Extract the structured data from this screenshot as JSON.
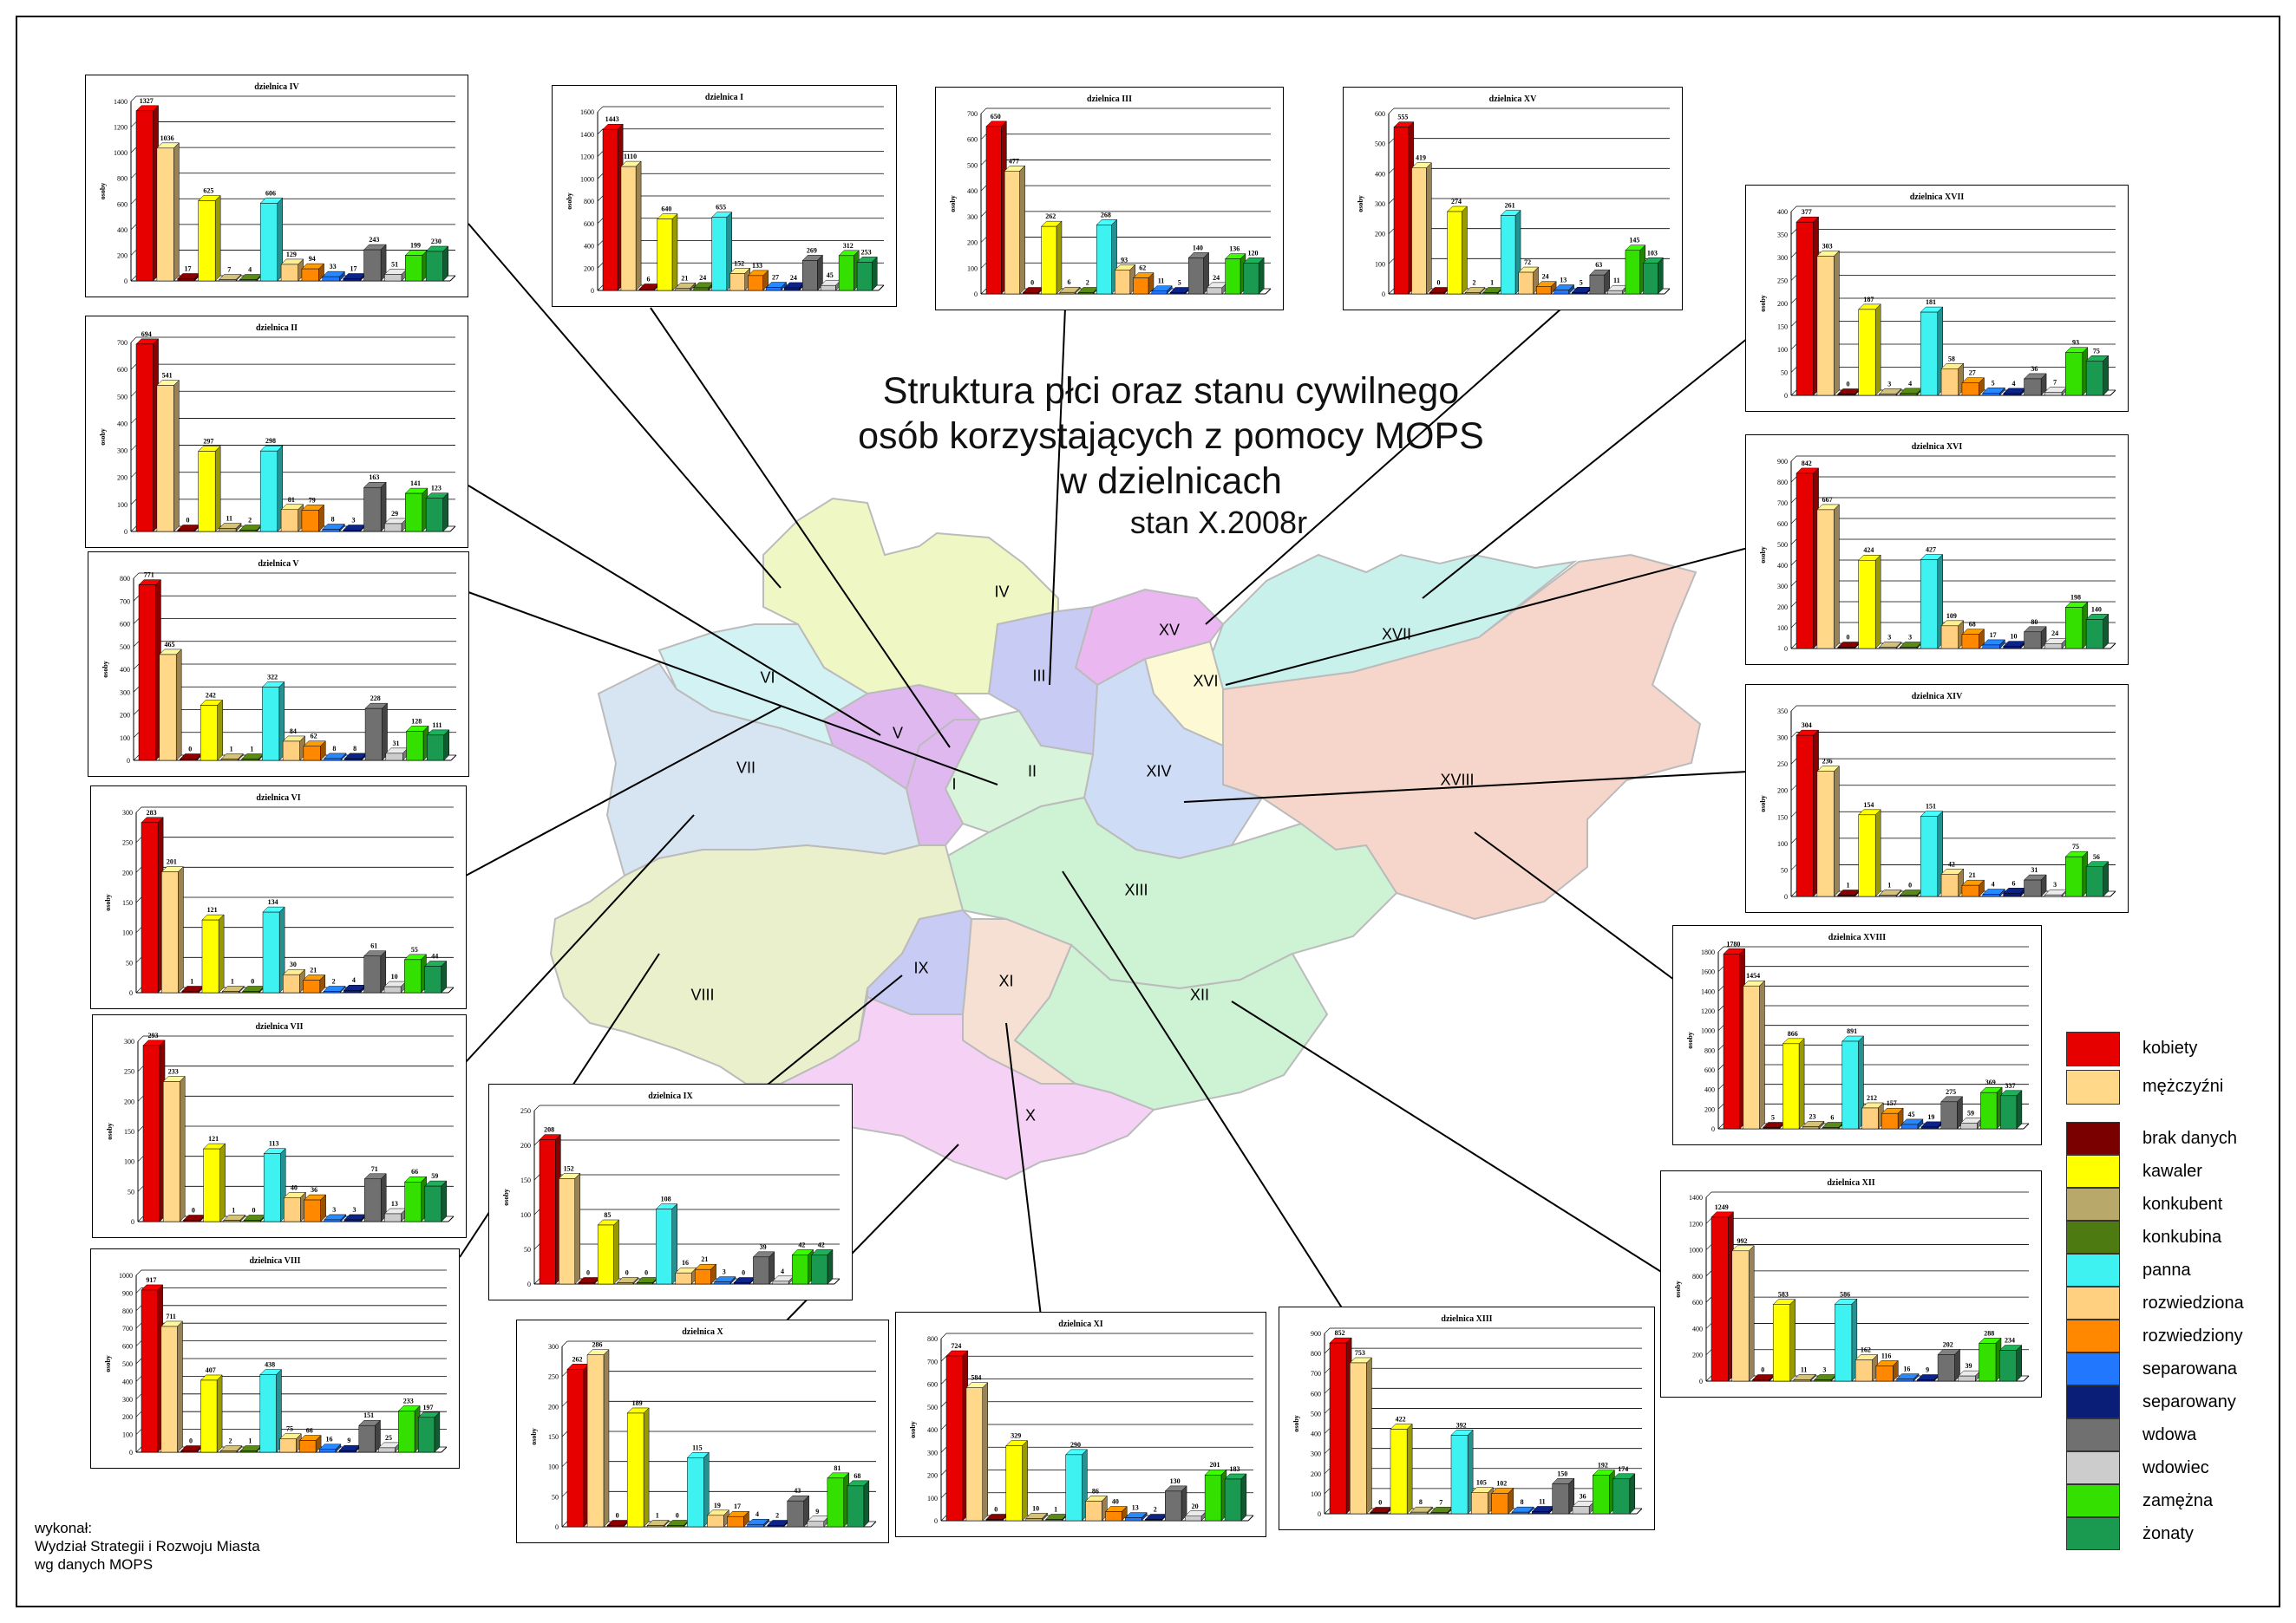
{
  "title": {
    "line1": "Struktura płci oraz stanu cywilnego",
    "line2": "osób korzystających z pomocy MOPS",
    "line3": "w dzielnicach",
    "line4": "stan X.2008r"
  },
  "credits": {
    "line1": "wykonał:",
    "line2": "Wydział Strategii i Rozwoju Miasta",
    "line3": "wg danych MOPS"
  },
  "map_labels": [
    "I",
    "II",
    "III",
    "IV",
    "V",
    "VI",
    "VII",
    "VIII",
    "IX",
    "X",
    "XI",
    "XII",
    "XIII",
    "XIV",
    "XV",
    "XVI",
    "XVII",
    "XVIII"
  ],
  "colors": {
    "kobiety": "#e60000",
    "mezczyzni": "#ffd88a",
    "brak_danych": "#7a0000",
    "kawaler": "#ffff00",
    "konkubent": "#b8a86a",
    "konkubina": "#4e7a12",
    "panna": "#3ef2f2",
    "rozwiedziona": "#ffd080",
    "rozwiedziony": "#ff8800",
    "separowana": "#2277ff",
    "separowany": "#0a1e78",
    "wdowa": "#707070",
    "wdowiec": "#cccccc",
    "zamezna": "#33e000",
    "zonaty": "#1a9a50"
  },
  "legend": [
    {
      "label": "kobiety",
      "key": "kobiety"
    },
    {
      "label": "mężczyźni",
      "key": "mezczyzni"
    },
    {
      "label": "brak danych",
      "key": "brak_danych"
    },
    {
      "label": "kawaler",
      "key": "kawaler"
    },
    {
      "label": "konkubent",
      "key": "konkubent"
    },
    {
      "label": "konkubina",
      "key": "konkubina"
    },
    {
      "label": "panna",
      "key": "panna"
    },
    {
      "label": "rozwiedziona",
      "key": "rozwiedziona"
    },
    {
      "label": "rozwiedziony",
      "key": "rozwiedziony"
    },
    {
      "label": "separowana",
      "key": "separowana"
    },
    {
      "label": "separowany",
      "key": "separowany"
    },
    {
      "label": "wdowa",
      "key": "wdowa"
    },
    {
      "label": "wdowiec",
      "key": "wdowiec"
    },
    {
      "label": "zamężna",
      "key": "zamezna"
    },
    {
      "label": "żonaty",
      "key": "zonaty"
    }
  ],
  "chart_data": [
    {
      "type": "bar",
      "title": "dzielnica IV",
      "ylabel": "osoby",
      "ylim": [
        0,
        1400
      ],
      "yticks": [
        0,
        200,
        400,
        600,
        800,
        1000,
        1200,
        1400
      ],
      "categories": [
        "kobiety",
        "mężczyźni",
        "brak danych",
        "kawaler",
        "konkubent",
        "konkubina",
        "panna",
        "rozwiedziona",
        "rozwiedziony",
        "separowana",
        "separowany",
        "wdowa",
        "wdowiec",
        "zamężna",
        "żonaty"
      ],
      "values": [
        1327,
        1036,
        17,
        625,
        7,
        4,
        606,
        129,
        94,
        33,
        17,
        243,
        51,
        199,
        230
      ]
    },
    {
      "type": "bar",
      "title": "dzielnica I",
      "ylabel": "osoby",
      "ylim": [
        0,
        1600
      ],
      "yticks": [
        0,
        200,
        400,
        600,
        800,
        1000,
        1200,
        1400,
        1600
      ],
      "categories": [
        "kobiety",
        "mężczyźni",
        "brak danych",
        "kawaler",
        "konkubent",
        "konkubina",
        "panna",
        "rozwiedziona",
        "rozwiedziony",
        "separowana",
        "separowany",
        "wdowa",
        "wdowiec",
        "zamężna",
        "żonaty"
      ],
      "values": [
        1443,
        1110,
        6,
        640,
        21,
        24,
        655,
        152,
        133,
        27,
        24,
        269,
        45,
        312,
        253
      ]
    },
    {
      "type": "bar",
      "title": "dzielnica III",
      "ylabel": "osoby",
      "ylim": [
        0,
        700
      ],
      "yticks": [
        0,
        100,
        200,
        300,
        400,
        500,
        600,
        700
      ],
      "categories": [
        "kobiety",
        "mężczyźni",
        "brak danych",
        "kawaler",
        "konkubent",
        "konkubina",
        "panna",
        "rozwiedziona",
        "rozwiedziony",
        "separowana",
        "separowany",
        "wdowa",
        "wdowiec",
        "zamężna",
        "żonaty"
      ],
      "values": [
        650,
        477,
        0,
        262,
        6,
        2,
        268,
        93,
        62,
        11,
        5,
        140,
        24,
        136,
        120
      ]
    },
    {
      "type": "bar",
      "title": "dzielnica XV",
      "ylabel": "osoby",
      "ylim": [
        0,
        600
      ],
      "yticks": [
        0,
        100,
        200,
        300,
        400,
        500,
        600
      ],
      "categories": [
        "kobiety",
        "mężczyźni",
        "brak danych",
        "kawaler",
        "konkubent",
        "konkubina",
        "panna",
        "rozwiedziona",
        "rozwiedziony",
        "separowana",
        "separowany",
        "wdowa",
        "wdowiec",
        "zamężna",
        "żonaty"
      ],
      "values": [
        555,
        419,
        0,
        274,
        2,
        1,
        261,
        72,
        24,
        13,
        5,
        63,
        11,
        145,
        103
      ]
    },
    {
      "type": "bar",
      "title": "dzielnica XVII",
      "ylabel": "osoby",
      "ylim": [
        0,
        400
      ],
      "yticks": [
        0,
        50,
        100,
        150,
        200,
        250,
        300,
        350,
        400
      ],
      "categories": [
        "kobiety",
        "mężczyźni",
        "brak danych",
        "kawaler",
        "konkubent",
        "konkubina",
        "panna",
        "rozwiedziona",
        "rozwiedziony",
        "separowana",
        "separowany",
        "wdowa",
        "wdowiec",
        "zamężna",
        "żonaty"
      ],
      "values": [
        377,
        303,
        0,
        187,
        3,
        4,
        181,
        58,
        27,
        5,
        4,
        36,
        7,
        93,
        75
      ]
    },
    {
      "type": "bar",
      "title": "dzielnica II",
      "ylabel": "osoby",
      "ylim": [
        0,
        700
      ],
      "yticks": [
        0,
        100,
        200,
        300,
        400,
        500,
        600,
        700
      ],
      "categories": [
        "kobiety",
        "mężczyźni",
        "brak danych",
        "kawaler",
        "konkubent",
        "konkubina",
        "panna",
        "rozwiedziona",
        "rozwiedziony",
        "separowana",
        "separowany",
        "wdowa",
        "wdowiec",
        "zamężna",
        "żonaty"
      ],
      "values": [
        694,
        541,
        0,
        297,
        11,
        2,
        298,
        81,
        79,
        8,
        3,
        163,
        29,
        141,
        123
      ]
    },
    {
      "type": "bar",
      "title": "dzielnica XVI",
      "ylabel": "osoby",
      "ylim": [
        0,
        900
      ],
      "yticks": [
        0,
        100,
        200,
        300,
        400,
        500,
        600,
        700,
        800,
        900
      ],
      "categories": [
        "kobiety",
        "mężczyźni",
        "brak danych",
        "kawaler",
        "konkubent",
        "konkubina",
        "panna",
        "rozwiedziona",
        "rozwiedziony",
        "separowana",
        "separowany",
        "wdowa",
        "wdowiec",
        "zamężna",
        "żonaty"
      ],
      "values": [
        842,
        667,
        0,
        424,
        3,
        3,
        427,
        109,
        68,
        17,
        10,
        80,
        24,
        198,
        140
      ]
    },
    {
      "type": "bar",
      "title": "dzielnica V",
      "ylabel": "osoby",
      "ylim": [
        0,
        800
      ],
      "yticks": [
        0,
        100,
        200,
        300,
        400,
        500,
        600,
        700,
        800
      ],
      "categories": [
        "kobiety",
        "mężczyźni",
        "brak danych",
        "kawaler",
        "konkubent",
        "konkubina",
        "panna",
        "rozwiedziona",
        "rozwiedziony",
        "separowana",
        "separowany",
        "wdowa",
        "wdowiec",
        "zamężna",
        "żonaty"
      ],
      "values": [
        771,
        465,
        0,
        242,
        1,
        1,
        322,
        84,
        62,
        8,
        8,
        228,
        31,
        128,
        111
      ]
    },
    {
      "type": "bar",
      "title": "dzielnica XIV",
      "ylabel": "osoby",
      "ylim": [
        0,
        350
      ],
      "yticks": [
        0,
        50,
        100,
        150,
        200,
        250,
        300,
        350
      ],
      "categories": [
        "kobiety",
        "mężczyźni",
        "brak danych",
        "kawaler",
        "konkubent",
        "konkubina",
        "panna",
        "rozwiedziona",
        "rozwiedziony",
        "separowana",
        "separowany",
        "wdowa",
        "wdowiec",
        "zamężna",
        "żonaty"
      ],
      "values": [
        304,
        236,
        1,
        154,
        1,
        0,
        151,
        42,
        21,
        4,
        6,
        31,
        3,
        75,
        56
      ]
    },
    {
      "type": "bar",
      "title": "dzielnica VI",
      "ylabel": "osoby",
      "ylim": [
        0,
        300
      ],
      "yticks": [
        0,
        50,
        100,
        150,
        200,
        250,
        300
      ],
      "categories": [
        "kobiety",
        "mężczyźni",
        "brak danych",
        "kawaler",
        "konkubent",
        "konkubina",
        "panna",
        "rozwiedziona",
        "rozwiedziony",
        "separowana",
        "separowany",
        "wdowa",
        "wdowiec",
        "zamężna",
        "żonaty"
      ],
      "values": [
        283,
        201,
        1,
        121,
        1,
        0,
        134,
        30,
        21,
        2,
        4,
        61,
        10,
        55,
        44
      ]
    },
    {
      "type": "bar",
      "title": "dzielnica XVIII",
      "ylabel": "osoby",
      "ylim": [
        0,
        1800
      ],
      "yticks": [
        0,
        200,
        400,
        600,
        800,
        1000,
        1200,
        1400,
        1600,
        1800
      ],
      "categories": [
        "kobiety",
        "mężczyźni",
        "brak danych",
        "kawaler",
        "konkubent",
        "konkubina",
        "panna",
        "rozwiedziona",
        "rozwiedziony",
        "separowana",
        "separowany",
        "wdowa",
        "wdowiec",
        "zamężna",
        "żonaty"
      ],
      "values": [
        1780,
        1454,
        5,
        866,
        23,
        6,
        891,
        212,
        157,
        45,
        19,
        275,
        59,
        369,
        337
      ]
    },
    {
      "type": "bar",
      "title": "dzielnica VII",
      "ylabel": "osoby",
      "ylim": [
        0,
        300
      ],
      "yticks": [
        0,
        50,
        100,
        150,
        200,
        250,
        300
      ],
      "categories": [
        "kobiety",
        "mężczyźni",
        "brak danych",
        "kawaler",
        "konkubent",
        "konkubina",
        "panna",
        "rozwiedziona",
        "rozwiedziony",
        "separowana",
        "separowany",
        "wdowa",
        "wdowiec",
        "zamężna",
        "żonaty"
      ],
      "values": [
        293,
        233,
        0,
        121,
        1,
        0,
        113,
        40,
        36,
        3,
        3,
        71,
        13,
        66,
        59
      ]
    },
    {
      "type": "bar",
      "title": "dzielnica IX",
      "ylabel": "osoby",
      "ylim": [
        0,
        250
      ],
      "yticks": [
        0,
        50,
        100,
        150,
        200,
        250
      ],
      "categories": [
        "kobiety",
        "mężczyźni",
        "brak danych",
        "kawaler",
        "konkubent",
        "konkubina",
        "panna",
        "rozwiedziona",
        "rozwiedziony",
        "separowana",
        "separowany",
        "wdowa",
        "wdowiec",
        "zamężna",
        "żonaty"
      ],
      "values": [
        208,
        152,
        0,
        85,
        0,
        0,
        108,
        16,
        21,
        3,
        0,
        39,
        4,
        42,
        42
      ]
    },
    {
      "type": "bar",
      "title": "dzielnica XII",
      "ylabel": "osoby",
      "ylim": [
        0,
        1400
      ],
      "yticks": [
        0,
        200,
        400,
        600,
        800,
        1000,
        1200,
        1400
      ],
      "categories": [
        "kobiety",
        "mężczyźni",
        "brak danych",
        "kawaler",
        "konkubent",
        "konkubina",
        "panna",
        "rozwiedziona",
        "rozwiedziony",
        "separowana",
        "separowany",
        "wdowa",
        "wdowiec",
        "zamężna",
        "żonaty"
      ],
      "values": [
        1249,
        992,
        0,
        583,
        11,
        3,
        586,
        162,
        116,
        16,
        9,
        202,
        39,
        288,
        234
      ]
    },
    {
      "type": "bar",
      "title": "dzielnica VIII",
      "ylabel": "osoby",
      "ylim": [
        0,
        1000
      ],
      "yticks": [
        0,
        100,
        200,
        300,
        400,
        500,
        600,
        700,
        800,
        900,
        1000
      ],
      "categories": [
        "kobiety",
        "mężczyźni",
        "brak danych",
        "kawaler",
        "konkubent",
        "konkubina",
        "panna",
        "rozwiedziona",
        "rozwiedziony",
        "separowana",
        "separowany",
        "wdowa",
        "wdowiec",
        "zamężna",
        "żonaty"
      ],
      "values": [
        917,
        711,
        0,
        407,
        2,
        1,
        438,
        75,
        66,
        16,
        9,
        151,
        25,
        233,
        197
      ]
    },
    {
      "type": "bar",
      "title": "dzielnica X",
      "ylabel": "osoby",
      "ylim": [
        0,
        300
      ],
      "yticks": [
        0,
        50,
        100,
        150,
        200,
        250,
        300
      ],
      "categories": [
        "kobiety",
        "mężczyźni",
        "brak danych",
        "kawaler",
        "konkubent",
        "konkubina",
        "panna",
        "rozwiedziona",
        "rozwiedziony",
        "separowana",
        "separowany",
        "wdowa",
        "wdowiec",
        "zamężna",
        "żonaty"
      ],
      "values": [
        262,
        286,
        0,
        189,
        1,
        0,
        115,
        19,
        17,
        4,
        2,
        43,
        9,
        81,
        68
      ]
    },
    {
      "type": "bar",
      "title": "dzielnica XI",
      "ylabel": "osoby",
      "ylim": [
        0,
        800
      ],
      "yticks": [
        0,
        100,
        200,
        300,
        400,
        500,
        600,
        700,
        800
      ],
      "categories": [
        "kobiety",
        "mężczyźni",
        "brak danych",
        "kawaler",
        "konkubent",
        "konkubina",
        "panna",
        "rozwiedziona",
        "rozwiedziony",
        "separowana",
        "separowany",
        "wdowa",
        "wdowiec",
        "zamężna",
        "żonaty"
      ],
      "values": [
        724,
        584,
        0,
        329,
        10,
        1,
        290,
        86,
        40,
        13,
        2,
        130,
        20,
        201,
        183
      ]
    },
    {
      "type": "bar",
      "title": "dzielnica XIII",
      "ylabel": "osoby",
      "ylim": [
        0,
        900
      ],
      "yticks": [
        0,
        100,
        200,
        300,
        400,
        500,
        600,
        700,
        800,
        900
      ],
      "categories": [
        "kobiety",
        "mężczyźni",
        "brak danych",
        "kawaler",
        "konkubent",
        "konkubina",
        "panna",
        "rozwiedziona",
        "rozwiedziony",
        "separowana",
        "separowany",
        "wdowa",
        "wdowiec",
        "zamężna",
        "żonaty"
      ],
      "values": [
        852,
        753,
        0,
        422,
        8,
        7,
        392,
        105,
        102,
        8,
        11,
        150,
        36,
        192,
        174
      ]
    }
  ]
}
